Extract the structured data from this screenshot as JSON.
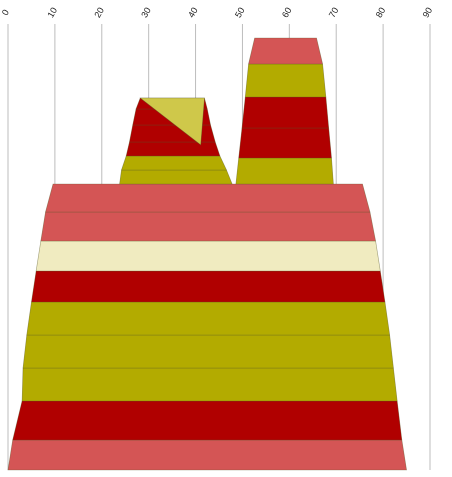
{
  "chart_data": {
    "type": "stacked-trapezoid",
    "xlim": [
      0,
      90
    ],
    "x_ticks": [
      0,
      10,
      20,
      30,
      40,
      50,
      60,
      70,
      80,
      90
    ],
    "x_tick_labels": [
      "0",
      "10",
      "20",
      "30",
      "40",
      "50",
      "60",
      "70",
      "80",
      "90"
    ],
    "grid": "vertical",
    "colors": {
      "red": "#b00000",
      "salmon": "#d45555",
      "olive": "#b3ab00",
      "khaki": "#cfc84a",
      "cream": "#f0ebc0"
    },
    "shapes": [
      {
        "bands": [
          {
            "x_bottom": [
              0,
              85
            ],
            "x_top": [
              1,
              84
            ],
            "color": "salmon"
          },
          {
            "x_bottom": [
              1,
              84
            ],
            "x_top": [
              3,
              83
            ],
            "color": "red"
          },
          {
            "x_bottom": [
              3,
              83
            ],
            "x_top": [
              3.2,
              82.2
            ],
            "color": "olive"
          },
          {
            "x_bottom": [
              3.2,
              82.2
            ],
            "x_top": [
              4,
              81.4
            ],
            "color": "olive"
          },
          {
            "x_bottom": [
              4,
              81.4
            ],
            "x_top": [
              5,
              80.4
            ],
            "color": "olive"
          },
          {
            "x_bottom": [
              5,
              80.4
            ],
            "x_top": [
              6,
              79.4
            ],
            "color": "red"
          },
          {
            "x_bottom": [
              6,
              79.4
            ],
            "x_top": [
              7,
              78.4
            ],
            "color": "cream"
          },
          {
            "x_bottom": [
              7,
              78.4
            ],
            "x_top": [
              8,
              77.2
            ],
            "color": "salmon"
          },
          {
            "x_bottom": [
              8,
              77.2
            ],
            "x_top": [
              9.6,
              75.6
            ],
            "color": "salmon"
          }
        ]
      },
      {
        "bands": [
          {
            "x_bottom": [
              23.8,
              47.8
            ],
            "x_top": [
              24.2,
              46.6
            ],
            "color": "olive"
          },
          {
            "x_bottom": [
              24.2,
              46.6
            ],
            "x_top": [
              25.2,
              45.2
            ],
            "color": "olive"
          },
          {
            "x_bottom": [
              25.2,
              45.2
            ],
            "x_top": [
              25.9,
              44.2
            ],
            "color": "red"
          },
          {
            "x_bottom": [
              25.9,
              44.2
            ],
            "x_top": [
              26.6,
              43.2
            ],
            "color": "red"
          },
          {
            "x_bottom": [
              26.6,
              43.2
            ],
            "x_top": [
              27.3,
              42.5
            ],
            "color": "red"
          },
          {
            "x_bottom": [
              27.3,
              42.5
            ],
            "x_top": [
              28.2,
              41.9
            ],
            "color": "red"
          },
          {
            "x_bottom": [
              28.2,
              41.9
            ],
            "x_top": [
              29.2,
              41.1
            ],
            "color": "khaki"
          }
        ]
      },
      {
        "bands": [
          {
            "x_bottom": [
              48.6,
              69.4
            ],
            "x_top": [
              49.2,
              69.0
            ],
            "color": "olive"
          },
          {
            "x_bottom": [
              49.2,
              69.0
            ],
            "x_top": [
              49.9,
              68.4
            ],
            "color": "red"
          },
          {
            "x_bottom": [
              49.9,
              68.4
            ],
            "x_top": [
              50.6,
              67.8
            ],
            "color": "red"
          },
          {
            "x_bottom": [
              50.6,
              67.8
            ],
            "x_top": [
              51.3,
              67.1
            ],
            "color": "olive"
          },
          {
            "x_bottom": [
              51.3,
              67.1
            ],
            "x_top": [
              52.6,
              65.8
            ],
            "color": "salmon"
          }
        ]
      }
    ]
  }
}
